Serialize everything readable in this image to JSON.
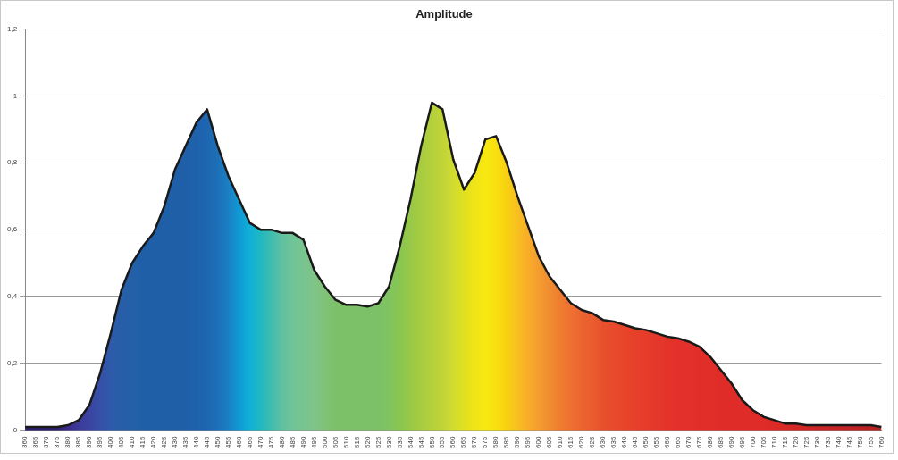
{
  "chart_data": {
    "type": "area",
    "title": "Amplitude",
    "categories": [
      "360",
      "365",
      "370",
      "375",
      "380",
      "385",
      "390",
      "395",
      "400",
      "405",
      "410",
      "415",
      "420",
      "425",
      "430",
      "435",
      "440",
      "445",
      "450",
      "455",
      "460",
      "465",
      "470",
      "475",
      "480",
      "485",
      "490",
      "495",
      "500",
      "505",
      "510",
      "515",
      "520",
      "525",
      "530",
      "535",
      "540",
      "545",
      "550",
      "555",
      "560",
      "565",
      "570",
      "575",
      "580",
      "585",
      "590",
      "595",
      "600",
      "605",
      "610",
      "615",
      "620",
      "625",
      "630",
      "635",
      "640",
      "645",
      "650",
      "655",
      "660",
      "665",
      "670",
      "675",
      "680",
      "685",
      "690",
      "695",
      "700",
      "705",
      "710",
      "715",
      "720",
      "725",
      "730",
      "735",
      "740",
      "745",
      "750",
      "755",
      "760"
    ],
    "series": [
      {
        "color": "#1a1a1a",
        "values": [
          0.01,
          0.01,
          0.01,
          0.01,
          0.015,
          0.03,
          0.075,
          0.17,
          0.29,
          0.42,
          0.5,
          0.55,
          0.59,
          0.67,
          0.78,
          0.85,
          0.92,
          0.96,
          0.85,
          0.76,
          0.69,
          0.62,
          0.6,
          0.6,
          0.59,
          0.59,
          0.57,
          0.48,
          0.43,
          0.39,
          0.375,
          0.375,
          0.37,
          0.38,
          0.43,
          0.55,
          0.69,
          0.85,
          0.98,
          0.96,
          0.81,
          0.72,
          0.77,
          0.87,
          0.88,
          0.8,
          0.7,
          0.61,
          0.52,
          0.46,
          0.42,
          0.38,
          0.36,
          0.35,
          0.33,
          0.325,
          0.315,
          0.305,
          0.3,
          0.29,
          0.28,
          0.275,
          0.265,
          0.25,
          0.22,
          0.18,
          0.14,
          0.09,
          0.06,
          0.04,
          0.03,
          0.02,
          0.02,
          0.015,
          0.015,
          0.015,
          0.015,
          0.015,
          0.015,
          0.015,
          0.01
        ],
        "colors": [
          "#2e1f6e",
          "#2e1f6e",
          "#2e1f6e",
          "#2e1f6e",
          "#3a2d8c",
          "#3d3a9a",
          "#3b44a0",
          "#3550a8",
          "#2e5aaa",
          "#275ea8",
          "#2460a8",
          "#1f5fa8",
          "#1f5fa8",
          "#1f5fa8",
          "#1f5fa8",
          "#1f60a8",
          "#1f62ac",
          "#1d66b0",
          "#1d70b8",
          "#1a80c4",
          "#1099d4",
          "#10b0d8",
          "#20b8c0",
          "#40bcb0",
          "#60c0a0",
          "#70c498",
          "#78c490",
          "#80c488",
          "#80c278",
          "#7cc068",
          "#7cc068",
          "#7cc068",
          "#7cc068",
          "#7cc068",
          "#80c460",
          "#88c650",
          "#98c848",
          "#a8cc40",
          "#b4d03c",
          "#c0d438",
          "#d0dc30",
          "#e0e020",
          "#f0e418",
          "#f8e810",
          "#f8e010",
          "#f8d010",
          "#f8c020",
          "#f8ac28",
          "#f49c30",
          "#f08c30",
          "#f07c30",
          "#ee7030",
          "#ec6430",
          "#ea5c2e",
          "#e8502c",
          "#e84a2c",
          "#e8442a",
          "#e6402a",
          "#e63c2a",
          "#e4382a",
          "#e4342a",
          "#e4302a",
          "#e4302a",
          "#e22e28",
          "#e22e28",
          "#e02c28",
          "#e02c28",
          "#e02c28",
          "#e02c28",
          "#e02c28",
          "#dc2a26",
          "#d82a26",
          "#d42826",
          "#d02826",
          "#cc2624",
          "#c82624",
          "#c42424",
          "#c02424",
          "#bc2222",
          "#b82222",
          "#b02020"
        ]
      }
    ],
    "ylim": [
      0,
      1.2
    ],
    "yticks": [
      {
        "value": 0,
        "label": "0"
      },
      {
        "value": 0.2,
        "label": "0,2"
      },
      {
        "value": 0.4,
        "label": "0,4"
      },
      {
        "value": 0.6,
        "label": "0,6"
      },
      {
        "value": 0.8,
        "label": "0,8"
      },
      {
        "value": 1,
        "label": "1"
      },
      {
        "value": 1.2,
        "label": "1,2"
      }
    ],
    "grid": "y",
    "legend": false,
    "marker": "none",
    "line_style": "solid"
  }
}
